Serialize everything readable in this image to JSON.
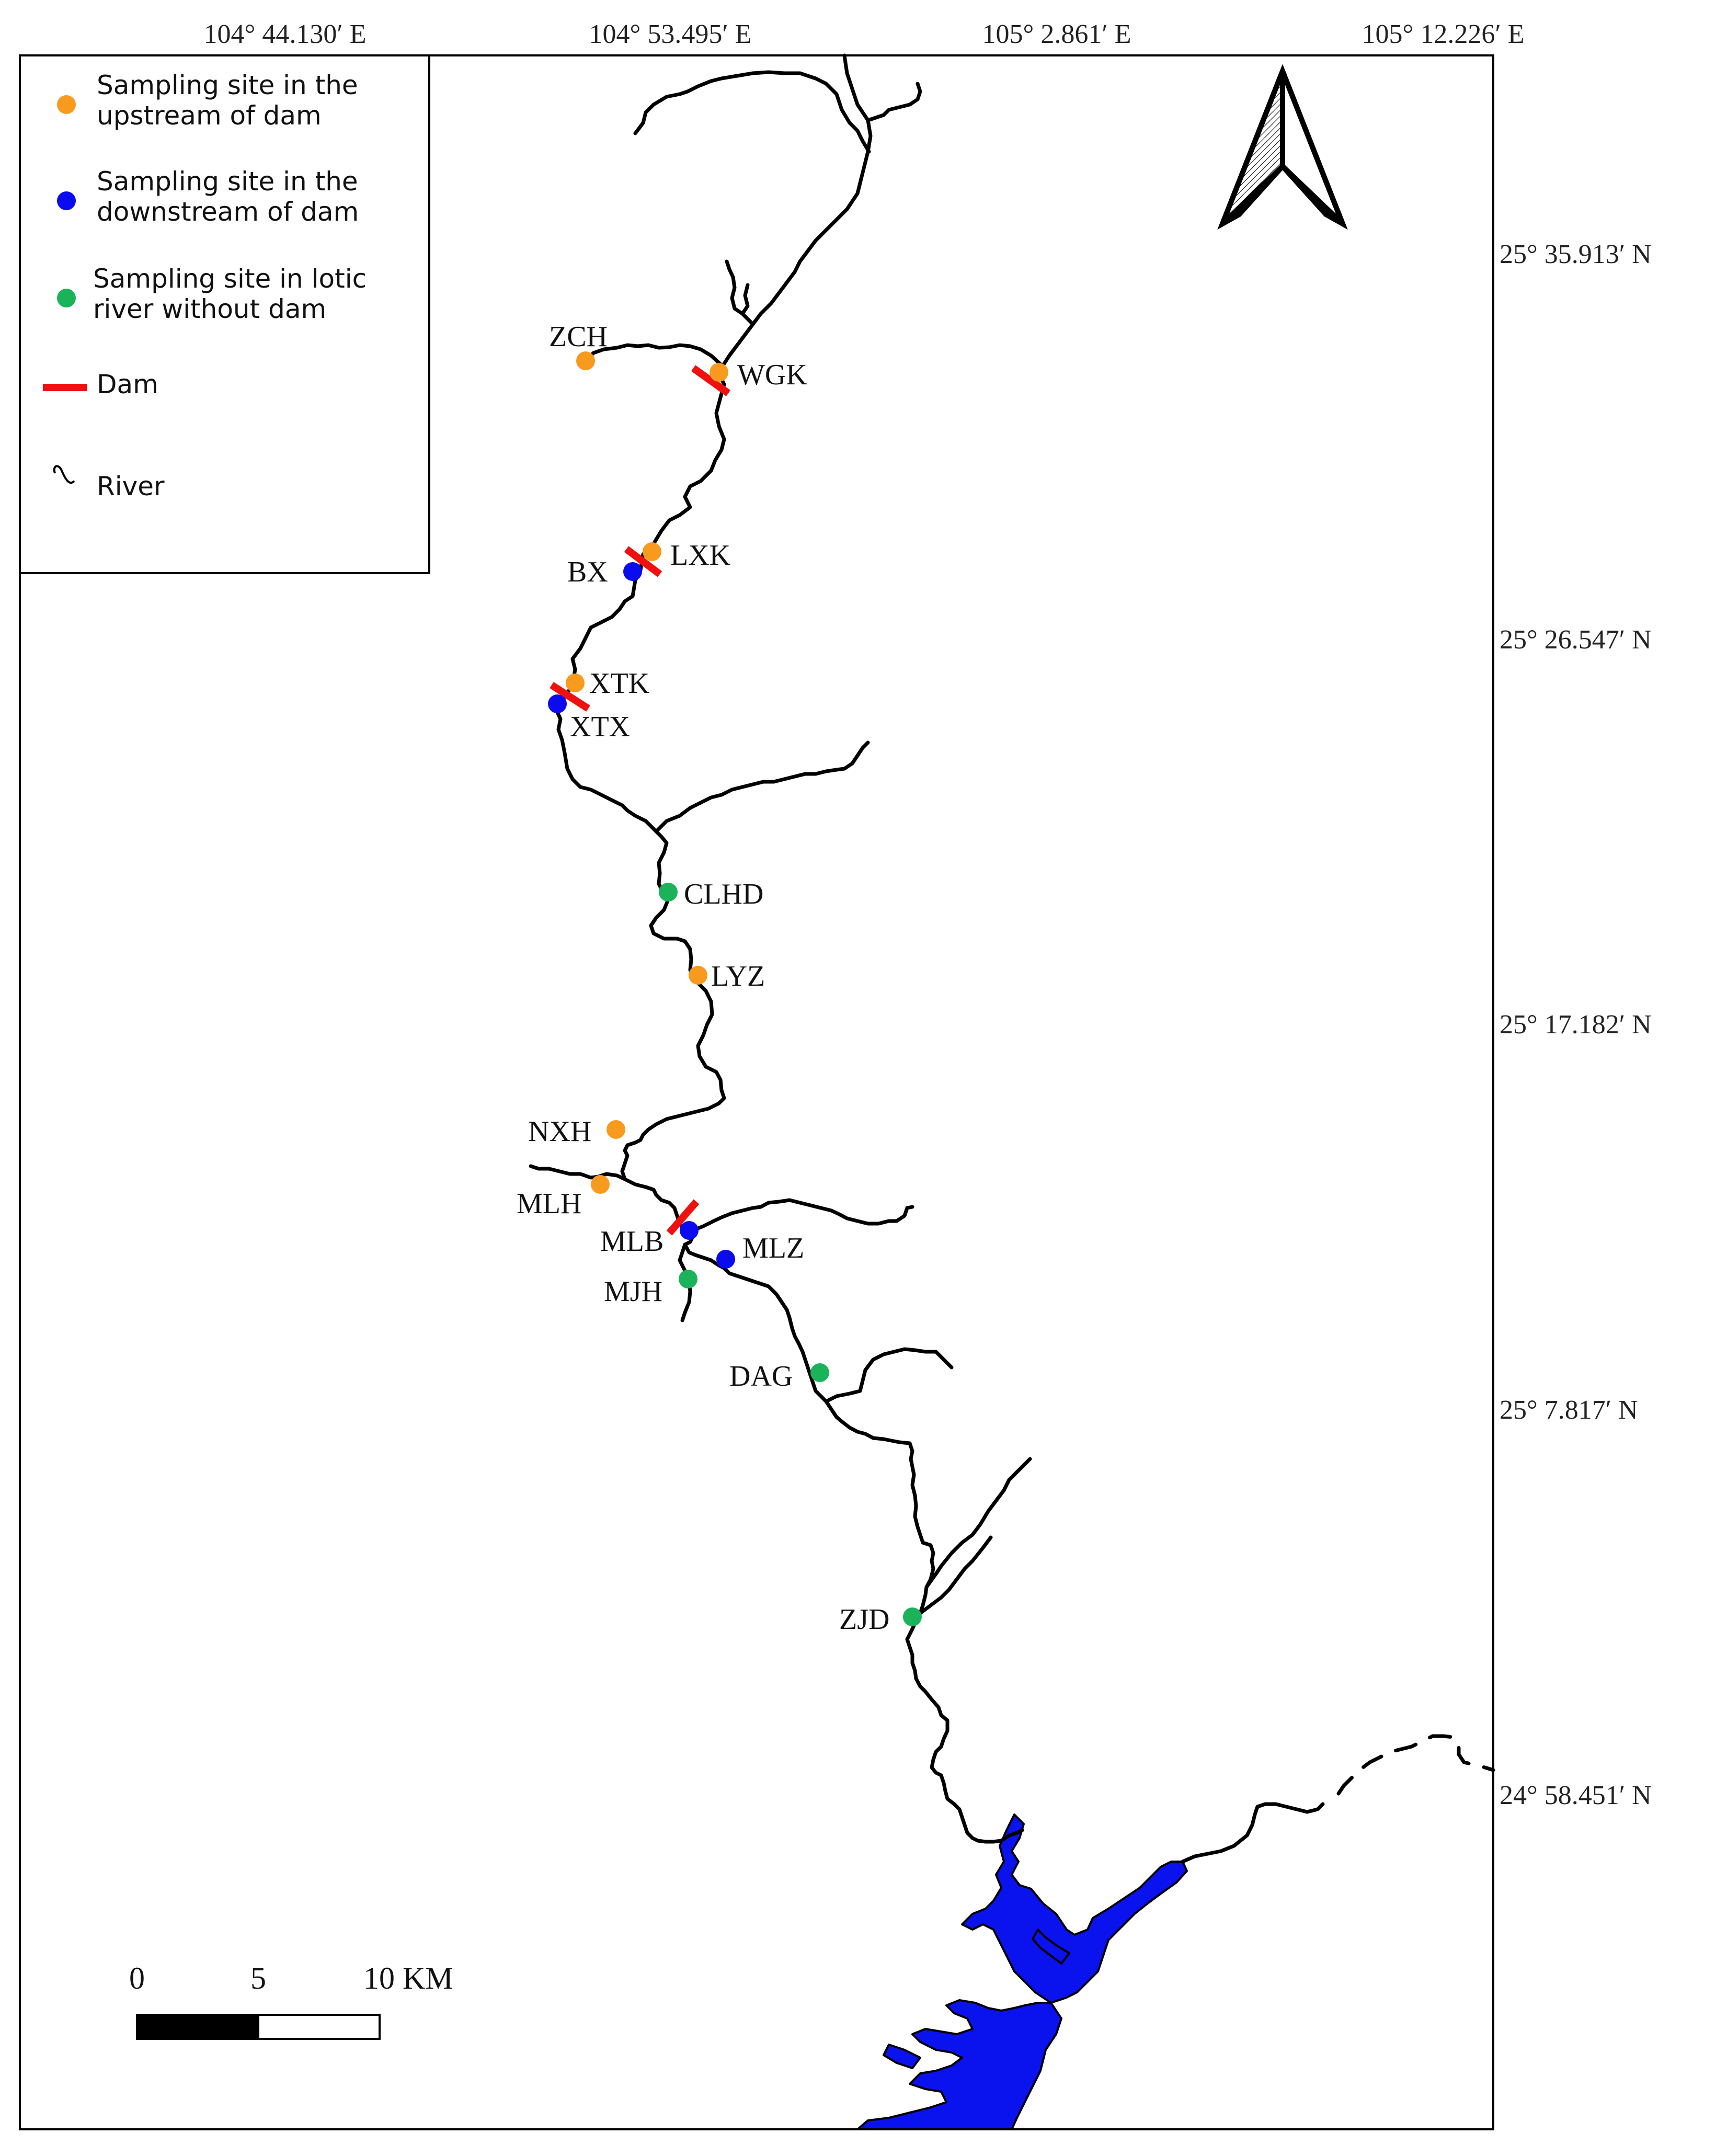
{
  "map": {
    "lon_ticks": [
      "104° 44.130′ E",
      "104° 53.495′ E",
      "105° 2.861′ E",
      "105° 12.226′ E"
    ],
    "lat_ticks": [
      "25° 35.913′ N",
      "25° 26.547′ N",
      "25° 17.182′ N",
      "25° 7.817′ N",
      "24° 58.451′ N"
    ]
  },
  "legend": {
    "items": [
      {
        "label_line1": "Sampling site in the",
        "label_line2": "upstream of dam",
        "symbol": "dot",
        "color": "#f79a1e"
      },
      {
        "label_line1": "Sampling site in the",
        "label_line2": "downstream of dam",
        "symbol": "dot",
        "color": "#0b0bf0"
      },
      {
        "label_line1": "Sampling site in lotic",
        "label_line2": "river without dam",
        "symbol": "dot",
        "color": "#1bb35a"
      },
      {
        "label_line1": "Dam",
        "label_line2": "",
        "symbol": "bar",
        "color": "#f01010"
      },
      {
        "label_line1": "River",
        "label_line2": "",
        "symbol": "river-line-icon",
        "color": "#000000"
      }
    ]
  },
  "sites": [
    {
      "code": "ZCH",
      "type": "upstream"
    },
    {
      "code": "WGK",
      "type": "upstream"
    },
    {
      "code": "LXK",
      "type": "upstream"
    },
    {
      "code": "BX",
      "type": "downstream"
    },
    {
      "code": "XTK",
      "type": "upstream"
    },
    {
      "code": "XTX",
      "type": "downstream"
    },
    {
      "code": "CLHD",
      "type": "lotic"
    },
    {
      "code": "LYZ",
      "type": "upstream"
    },
    {
      "code": "NXH",
      "type": "upstream"
    },
    {
      "code": "MLH",
      "type": "upstream"
    },
    {
      "code": "MLB",
      "type": "downstream"
    },
    {
      "code": "MLZ",
      "type": "downstream"
    },
    {
      "code": "MJH",
      "type": "lotic"
    },
    {
      "code": "DAG",
      "type": "lotic"
    },
    {
      "code": "ZJD",
      "type": "lotic"
    }
  ],
  "colors": {
    "upstream": "#f79a1e",
    "downstream": "#0b0bf0",
    "lotic": "#1bb35a",
    "dam": "#f01010",
    "reservoir": "#0a13ee"
  },
  "scale_bar": {
    "labels": [
      "0",
      "5",
      "10 KM"
    ]
  },
  "north_arrow": {
    "icon": "north-arrow-icon"
  }
}
